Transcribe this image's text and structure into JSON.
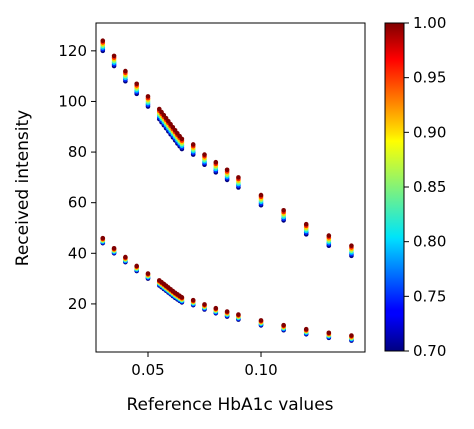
{
  "chart_data": {
    "type": "scatter",
    "xlabel": "Reference HbA1c values",
    "ylabel": "Received intensity",
    "xlim": [
      0.027,
      0.146
    ],
    "ylim": [
      1,
      131
    ],
    "xticks": [
      0.05,
      0.1
    ],
    "xtick_labels": [
      "0.05",
      "0.10"
    ],
    "yticks": [
      20,
      40,
      60,
      80,
      100,
      120
    ],
    "ytick_labels": [
      "20",
      "40",
      "60",
      "80",
      "100",
      "120"
    ],
    "x": [
      0.03,
      0.035,
      0.04,
      0.045,
      0.05,
      0.055,
      0.056,
      0.057,
      0.058,
      0.059,
      0.06,
      0.061,
      0.062,
      0.063,
      0.064,
      0.065,
      0.07,
      0.075,
      0.08,
      0.085,
      0.09,
      0.1,
      0.11,
      0.12,
      0.13,
      0.14
    ],
    "series": [
      {
        "group": "upper",
        "y_at_max": [
          124,
          118,
          112,
          107,
          102,
          97,
          95.8,
          94.6,
          93.4,
          92.2,
          91,
          89.8,
          88.6,
          87.4,
          86.3,
          85.2,
          83,
          79,
          76,
          73,
          70,
          63,
          57,
          51.5,
          47,
          43
        ],
        "spread": 4
      },
      {
        "group": "lower",
        "y_at_max": [
          46,
          42,
          38.5,
          35,
          32,
          29.3,
          28.6,
          27.9,
          27.2,
          26.5,
          25.8,
          25.1,
          24.4,
          23.8,
          23.2,
          22.6,
          21.5,
          19.8,
          18.3,
          17,
          15.8,
          13.5,
          11.6,
          10,
          8.6,
          7.5
        ],
        "spread": 2
      }
    ],
    "color_values": [
      0.7,
      0.75,
      0.8,
      0.85,
      0.9,
      0.95,
      1.0
    ],
    "colorbar": {
      "colormap": "jet",
      "range": [
        0.7,
        1.0
      ],
      "ticks": [
        "0.70",
        "0.75",
        "0.80",
        "0.85",
        "0.90",
        "0.95",
        "1.00"
      ]
    },
    "legend": "none",
    "grid": false
  }
}
